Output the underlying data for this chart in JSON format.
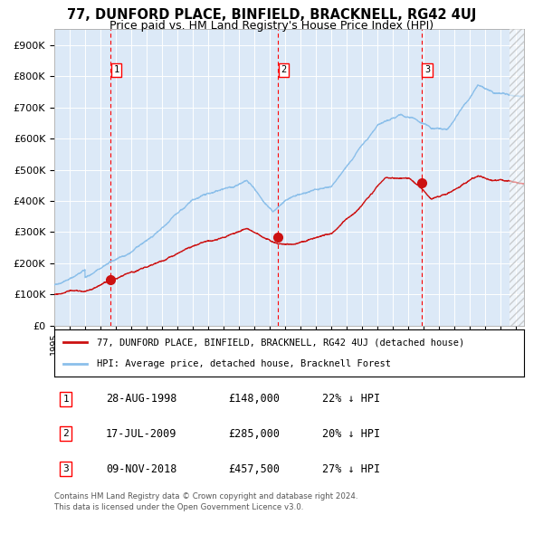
{
  "title": "77, DUNFORD PLACE, BINFIELD, BRACKNELL, RG42 4UJ",
  "subtitle": "Price paid vs. HM Land Registry's House Price Index (HPI)",
  "ylim": [
    0,
    950000
  ],
  "yticks": [
    0,
    100000,
    200000,
    300000,
    400000,
    500000,
    600000,
    700000,
    800000,
    900000
  ],
  "ytick_labels": [
    "£0",
    "£100K",
    "£200K",
    "£300K",
    "£400K",
    "£500K",
    "£600K",
    "£700K",
    "£800K",
    "£900K"
  ],
  "xlim_start": 1995.0,
  "xlim_end": 2025.5,
  "plot_bg_color": "#dce9f7",
  "hpi_line_color": "#8bbfea",
  "price_line_color": "#cc1111",
  "marker_color": "#cc1111",
  "sale1_date": 1998.66,
  "sale1_price": 148000,
  "sale1_label": "1",
  "sale2_date": 2009.54,
  "sale2_price": 285000,
  "sale2_label": "2",
  "sale3_date": 2018.86,
  "sale3_price": 457500,
  "sale3_label": "3",
  "legend_line1": "77, DUNFORD PLACE, BINFIELD, BRACKNELL, RG42 4UJ (detached house)",
  "legend_line2": "HPI: Average price, detached house, Bracknell Forest",
  "table_rows": [
    {
      "num": "1",
      "date": "28-AUG-1998",
      "price": "£148,000",
      "hpi": "22% ↓ HPI"
    },
    {
      "num": "2",
      "date": "17-JUL-2009",
      "price": "£285,000",
      "hpi": "20% ↓ HPI"
    },
    {
      "num": "3",
      "date": "09-NOV-2018",
      "price": "£457,500",
      "hpi": "27% ↓ HPI"
    }
  ],
  "footnote1": "Contains HM Land Registry data © Crown copyright and database right 2024.",
  "footnote2": "This data is licensed under the Open Government Licence v3.0.",
  "hatch_color": "#aaaaaa"
}
